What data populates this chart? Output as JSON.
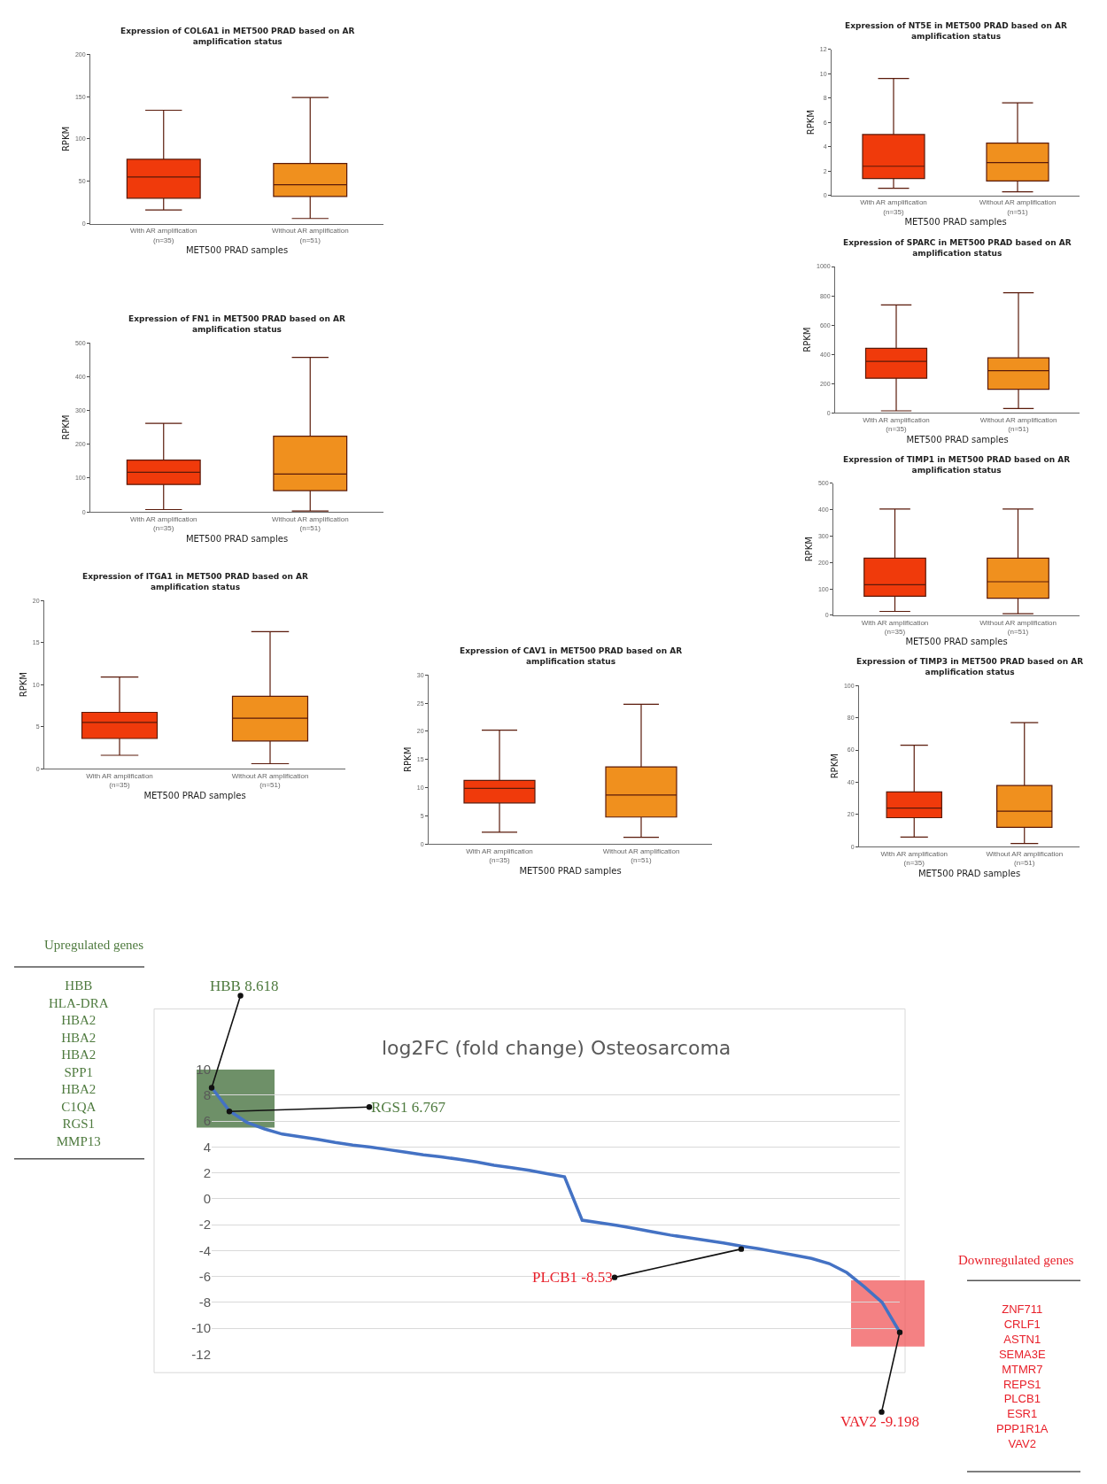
{
  "chart_data": [
    {
      "type": "box",
      "title": "Expression of COL6A1 in MET500 PRAD based on AR\namplification status",
      "xlabel": "MET500 PRAD samples",
      "ylabel": "RPKM",
      "categories": [
        "With AR amplification\n(n=35)",
        "Without AR amplification\n(n=51)"
      ],
      "colors": [
        "#f03a0b",
        "#f0901e"
      ],
      "ylim": [
        0,
        200
      ],
      "yticks": [
        0,
        50,
        100,
        150,
        200
      ],
      "boxes": [
        {
          "low": 16,
          "q1": 30,
          "median": 55,
          "q3": 76,
          "high": 134
        },
        {
          "low": 6,
          "q1": 32,
          "median": 46,
          "q3": 71,
          "high": 149
        }
      ]
    },
    {
      "type": "box",
      "title": "Expression of NT5E in MET500 PRAD based on AR\namplification status",
      "xlabel": "MET500 PRAD samples",
      "ylabel": "RPKM",
      "categories": [
        "With AR amplification\n(n=35)",
        "Without AR amplification\n(n=51)"
      ],
      "colors": [
        "#f03a0b",
        "#f0901e"
      ],
      "ylim": [
        0,
        12
      ],
      "yticks": [
        0,
        2,
        4,
        6,
        8,
        10,
        12
      ],
      "boxes": [
        {
          "low": 0.6,
          "q1": 1.4,
          "median": 2.4,
          "q3": 5.0,
          "high": 9.6
        },
        {
          "low": 0.3,
          "q1": 1.2,
          "median": 2.7,
          "q3": 4.3,
          "high": 7.6
        }
      ]
    },
    {
      "type": "box",
      "title": "Expression of FN1 in MET500 PRAD based on AR\namplification status",
      "xlabel": "MET500 PRAD samples",
      "ylabel": "RPKM",
      "categories": [
        "With AR amplification\n(n=35)",
        "Without AR amplification\n(n=51)"
      ],
      "colors": [
        "#f03a0b",
        "#f0901e"
      ],
      "ylim": [
        0,
        500
      ],
      "yticks": [
        0,
        100,
        200,
        300,
        400,
        500
      ],
      "boxes": [
        {
          "low": 7,
          "q1": 81,
          "median": 117,
          "q3": 153,
          "high": 262
        },
        {
          "low": 3,
          "q1": 63,
          "median": 112,
          "q3": 224,
          "high": 457
        }
      ]
    },
    {
      "type": "box",
      "title": "Expression of SPARC in MET500 PRAD based on AR\namplification status",
      "xlabel": "MET500 PRAD samples",
      "ylabel": "RPKM",
      "categories": [
        "With AR amplification\n(n=35)",
        "Without AR amplification\n(n=51)"
      ],
      "colors": [
        "#f03a0b",
        "#f0901e"
      ],
      "ylim": [
        0,
        1000
      ],
      "yticks": [
        0,
        200,
        400,
        600,
        800,
        1000
      ],
      "boxes": [
        {
          "low": 14,
          "q1": 237,
          "median": 352,
          "q3": 441,
          "high": 738
        },
        {
          "low": 30,
          "q1": 161,
          "median": 288,
          "q3": 376,
          "high": 821
        }
      ]
    },
    {
      "type": "box",
      "title": "Expression of TIMP1 in MET500 PRAD based on AR\namplification status",
      "xlabel": "MET500 PRAD samples",
      "ylabel": "RPKM",
      "categories": [
        "With AR amplification\n(n=35)",
        "Without AR amplification\n(n=51)"
      ],
      "colors": [
        "#f03a0b",
        "#f0901e"
      ],
      "ylim": [
        0,
        500
      ],
      "yticks": [
        0,
        100,
        200,
        300,
        400,
        500
      ],
      "boxes": [
        {
          "low": 15,
          "q1": 72,
          "median": 116,
          "q3": 216,
          "high": 402
        },
        {
          "low": 6,
          "q1": 65,
          "median": 127,
          "q3": 216,
          "high": 402
        }
      ]
    },
    {
      "type": "box",
      "title": "Expression of ITGA1 in MET500 PRAD based on AR\namplification status",
      "xlabel": "MET500 PRAD samples",
      "ylabel": "RPKM",
      "categories": [
        "With AR amplification\n(n=35)",
        "Without AR amplification\n(n=51)"
      ],
      "colors": [
        "#f03a0b",
        "#f0901e"
      ],
      "ylim": [
        0,
        20
      ],
      "yticks": [
        0,
        5,
        10,
        15,
        20
      ],
      "boxes": [
        {
          "low": 1.6,
          "q1": 3.6,
          "median": 5.5,
          "q3": 6.7,
          "high": 10.9
        },
        {
          "low": 0.6,
          "q1": 3.3,
          "median": 6.0,
          "q3": 8.6,
          "high": 16.3
        }
      ]
    },
    {
      "type": "box",
      "title": "Expression of CAV1 in MET500 PRAD based on AR\namplification status",
      "xlabel": "MET500 PRAD samples",
      "ylabel": "RPKM",
      "categories": [
        "With AR amplification\n(n=35)",
        "Without AR amplification\n(n=51)"
      ],
      "colors": [
        "#f03a0b",
        "#f0901e"
      ],
      "ylim": [
        0,
        30
      ],
      "yticks": [
        0,
        5,
        10,
        15,
        20,
        25,
        30
      ],
      "boxes": [
        {
          "low": 2.1,
          "q1": 7.3,
          "median": 9.9,
          "q3": 11.3,
          "high": 20.2
        },
        {
          "low": 1.2,
          "q1": 4.8,
          "median": 8.7,
          "q3": 13.7,
          "high": 24.8
        }
      ]
    },
    {
      "type": "box",
      "title": "Expression of TIMP3 in MET500 PRAD based on AR\namplification status",
      "xlabel": "MET500 PRAD samples",
      "ylabel": "RPKM",
      "categories": [
        "With AR amplification\n(n=35)",
        "Without AR amplification\n(n=51)"
      ],
      "colors": [
        "#f03a0b",
        "#f0901e"
      ],
      "ylim": [
        0,
        100
      ],
      "yticks": [
        0,
        20,
        40,
        60,
        80,
        100
      ],
      "boxes": [
        {
          "low": 6,
          "q1": 18,
          "median": 24,
          "q3": 34,
          "high": 63
        },
        {
          "low": 2,
          "q1": 12,
          "median": 22,
          "q3": 38,
          "high": 77
        }
      ]
    },
    {
      "type": "line",
      "title": "log2FC (fold change) Osteosarcoma",
      "categories": [
        null,
        null,
        null,
        null,
        null,
        null,
        null,
        null,
        null,
        null,
        null,
        null,
        null,
        null,
        null,
        null,
        null,
        null,
        null,
        null,
        null,
        null,
        null,
        null,
        null,
        null,
        null,
        null,
        null,
        null,
        null,
        null,
        null,
        null,
        null,
        null,
        null,
        null,
        null,
        null
      ],
      "series": [
        {
          "color": "#4472c4",
          "values": [
            8.6,
            6.8,
            5.9,
            5.4,
            5.0,
            4.8,
            4.6,
            4.35,
            4.15,
            4.0,
            3.8,
            3.6,
            3.4,
            3.25,
            3.05,
            2.85,
            2.6,
            2.4,
            2.2,
            1.95,
            1.7,
            -1.65,
            -1.85,
            -2.05,
            -2.3,
            -2.55,
            -2.8,
            -3.0,
            -3.2,
            -3.4,
            -3.65,
            -3.85,
            -4.1,
            -4.35,
            -4.6,
            -5.0,
            -5.7,
            -6.8,
            -8.0,
            -10.3
          ]
        }
      ],
      "ylim": [
        -12,
        10
      ],
      "yticks": [
        -12,
        -10,
        -8,
        -6,
        -4,
        -2,
        0,
        2,
        4,
        6,
        8,
        10
      ],
      "grid": "y",
      "tick_labels": "y",
      "bands": [
        {
          "axis": "y",
          "from": 5.5,
          "to": 10,
          "color": "#3d6b35"
        },
        {
          "axis": "y",
          "from": -11.4,
          "to": -6.3,
          "color": "#f0575a"
        }
      ],
      "annotations": [
        "HBB 8.618",
        "RGS1 6.767",
        "PLCB1 -8.53",
        "VAV2 -9.198",
        "Upregulated genes",
        "HBB\nHLA-DRA\nHBA2\nHBA2\nHBA2\nSPP1\nHBA2\nC1QA\nRGS1\nMMP13",
        "Downregulated genes",
        "ZNF711\nCRLF1\nASTN1\nSEMA3E\nMTMR7\nREPS1\nPLCB1\nESR1\nPPP1R1A\nVAV2"
      ]
    }
  ]
}
